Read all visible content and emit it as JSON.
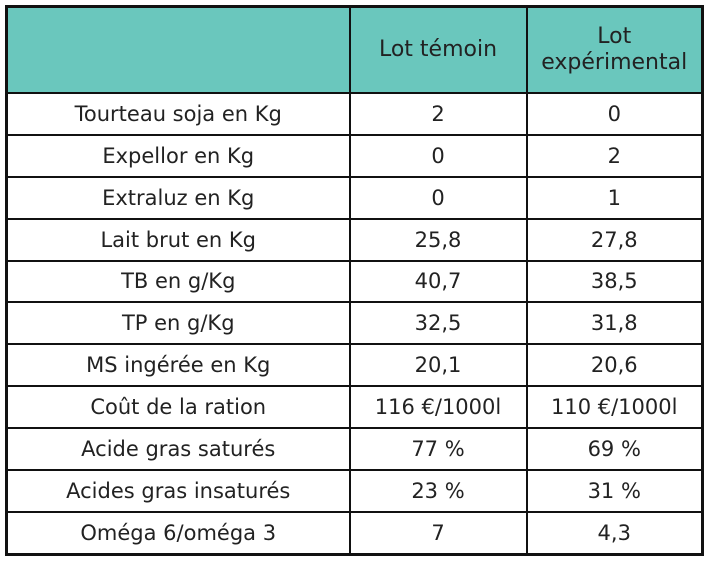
{
  "table": {
    "header": [
      "Lot témoin",
      "Lot expérimental"
    ],
    "rows": [
      [
        "Tourteau soja en Kg",
        "2",
        "0"
      ],
      [
        "Expellor en Kg",
        "0",
        "2"
      ],
      [
        "Extraluz en Kg",
        "0",
        "1"
      ],
      [
        "Lait brut en Kg",
        "25,8",
        "27,8"
      ],
      [
        "TB en g/Kg",
        "40,7",
        "38,5"
      ],
      [
        "TP en g/Kg",
        "32,5",
        "31,8"
      ],
      [
        "MS ingérée en Kg",
        "20,1",
        "20,6"
      ],
      [
        "Coût de la ration",
        "116 €/1000l",
        "110 €/1000l"
      ],
      [
        "Acide gras saturés",
        "77 %",
        "69 %"
      ],
      [
        "Acides gras insaturés",
        "23 %",
        "31 %"
      ],
      [
        "Oméga 6/oméga 3",
        "7",
        "4,3"
      ]
    ]
  }
}
